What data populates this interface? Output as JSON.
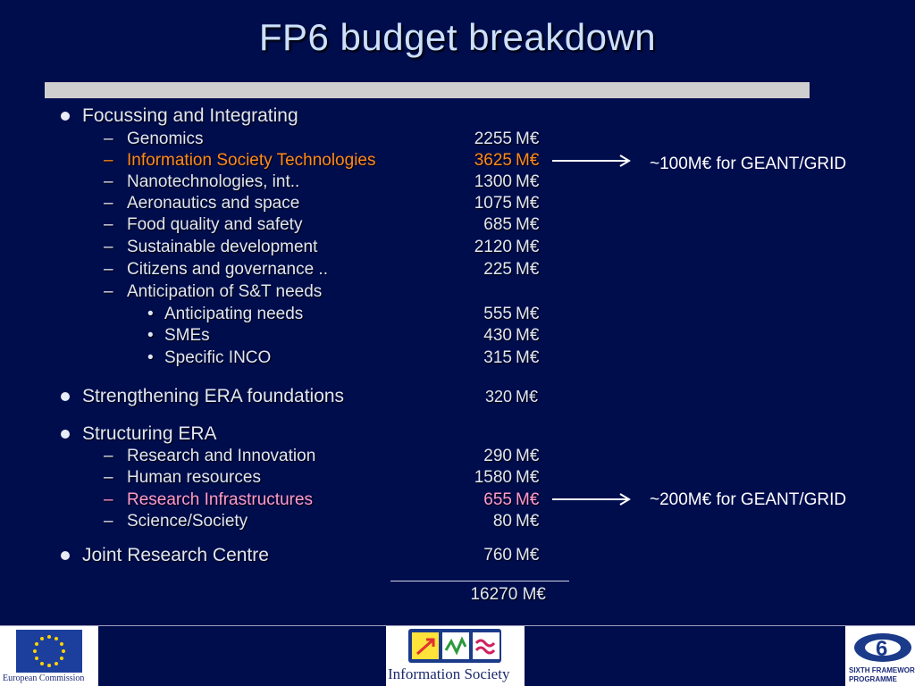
{
  "title": "FP6 budget breakdown",
  "sections": [
    {
      "label": "Focussing and Integrating"
    },
    {
      "label": "Strengthening ERA foundations",
      "value": "320",
      "unit": "M€"
    },
    {
      "label": "Structuring ERA"
    },
    {
      "label": "Joint Research Centre",
      "value": "760",
      "unit": "M€"
    }
  ],
  "focussing_items": [
    {
      "label": "Genomics",
      "value": "2255",
      "unit": "M€"
    },
    {
      "label": "Information Society Technologies",
      "value": "3625",
      "unit": "M€"
    },
    {
      "label": "Nanotechnologies, int..",
      "value": "1300",
      "unit": "M€"
    },
    {
      "label": "Aeronautics and space",
      "value": "1075",
      "unit": "M€"
    },
    {
      "label": "Food quality and safety",
      "value": "685",
      "unit": "M€"
    },
    {
      "label": "Sustainable development",
      "value": "2120",
      "unit": "M€"
    },
    {
      "label": "Citizens and governance ..",
      "value": "225",
      "unit": "M€"
    },
    {
      "label": "Anticipation of S&T needs"
    }
  ],
  "anticipation_items": [
    {
      "label": "Anticipating needs",
      "value": "555",
      "unit": "M€"
    },
    {
      "label": "SMEs",
      "value": "430",
      "unit": "M€"
    },
    {
      "label": "Specific INCO",
      "value": "315",
      "unit": "M€"
    }
  ],
  "structuring_items": [
    {
      "label": "Research and Innovation",
      "value": "290",
      "unit": "M€"
    },
    {
      "label": "Human resources",
      "value": "1580",
      "unit": "M€"
    },
    {
      "label": "Research Infrastructures",
      "value": "655",
      "unit": "M€"
    },
    {
      "label": "Science/Society",
      "value": "80",
      "unit": "M€"
    }
  ],
  "total": "16270 M€",
  "notes": {
    "ist": "~100M€ for GEANT/GRID",
    "infra": "~200M€ for GEANT/GRID"
  },
  "logos": {
    "ec": "European Commission",
    "is": "Information Society",
    "fp6_line1": "SIXTH FRAMEWORK",
    "fp6_line2": "PROGRAMME"
  },
  "colors": {
    "background": "#000d4d",
    "title": "#cce0ff",
    "highlight_ist": "#ff8a1c",
    "highlight_infra": "#ff9ad0"
  }
}
